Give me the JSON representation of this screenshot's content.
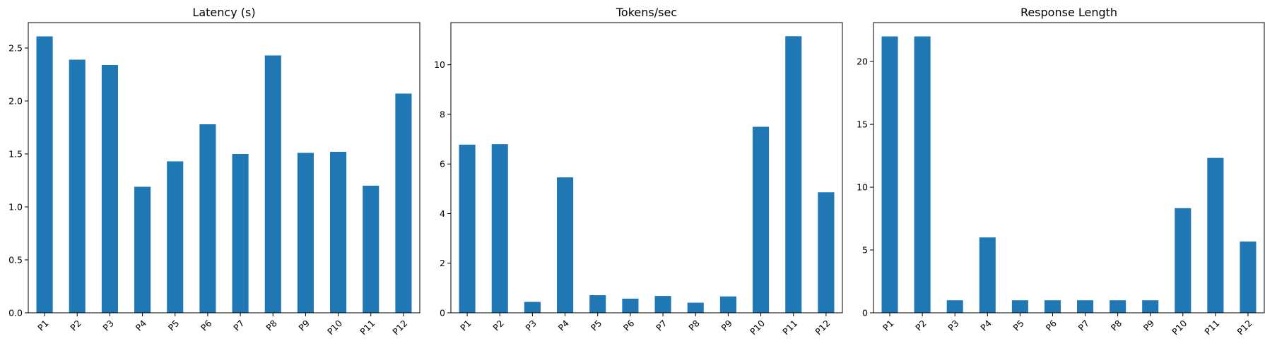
{
  "chart_data": [
    {
      "type": "bar",
      "title": "Latency (s)",
      "xlabel": "",
      "ylabel": "",
      "categories": [
        "P1",
        "P2",
        "P3",
        "P4",
        "P5",
        "P6",
        "P7",
        "P8",
        "P9",
        "P10",
        "P11",
        "P12"
      ],
      "values": [
        2.61,
        2.39,
        2.34,
        1.19,
        1.43,
        1.78,
        1.5,
        2.43,
        1.51,
        1.52,
        1.2,
        2.07
      ],
      "ylim": [
        0,
        2.74
      ],
      "yticks": [
        0.0,
        0.5,
        1.0,
        1.5,
        2.0,
        2.5
      ],
      "ytick_labels": [
        "0.0",
        "0.5",
        "1.0",
        "1.5",
        "2.0",
        "2.5"
      ],
      "color": "#1f77b4",
      "grid": false
    },
    {
      "type": "bar",
      "title": "Tokens/sec",
      "xlabel": "",
      "ylabel": "",
      "categories": [
        "P1",
        "P2",
        "P3",
        "P4",
        "P5",
        "P6",
        "P7",
        "P8",
        "P9",
        "P10",
        "P11",
        "P12"
      ],
      "values": [
        6.78,
        6.8,
        0.44,
        5.46,
        0.71,
        0.57,
        0.68,
        0.41,
        0.66,
        7.5,
        11.15,
        4.86
      ],
      "ylim": [
        0,
        11.7
      ],
      "yticks": [
        0,
        2,
        4,
        6,
        8,
        10
      ],
      "ytick_labels": [
        "0",
        "2",
        "4",
        "6",
        "8",
        "10"
      ],
      "color": "#1f77b4",
      "grid": false
    },
    {
      "type": "bar",
      "title": "Response Length",
      "xlabel": "",
      "ylabel": "",
      "categories": [
        "P1",
        "P2",
        "P3",
        "P4",
        "P5",
        "P6",
        "P7",
        "P8",
        "P9",
        "P10",
        "P11",
        "P12"
      ],
      "values": [
        22,
        22,
        1,
        6,
        1,
        1,
        1,
        1,
        1,
        8.33,
        12.33,
        5.67
      ],
      "ylim": [
        0,
        23.1
      ],
      "yticks": [
        0,
        5,
        10,
        15,
        20
      ],
      "ytick_labels": [
        "0",
        "5",
        "10",
        "15",
        "20"
      ],
      "color": "#1f77b4",
      "grid": false
    }
  ]
}
